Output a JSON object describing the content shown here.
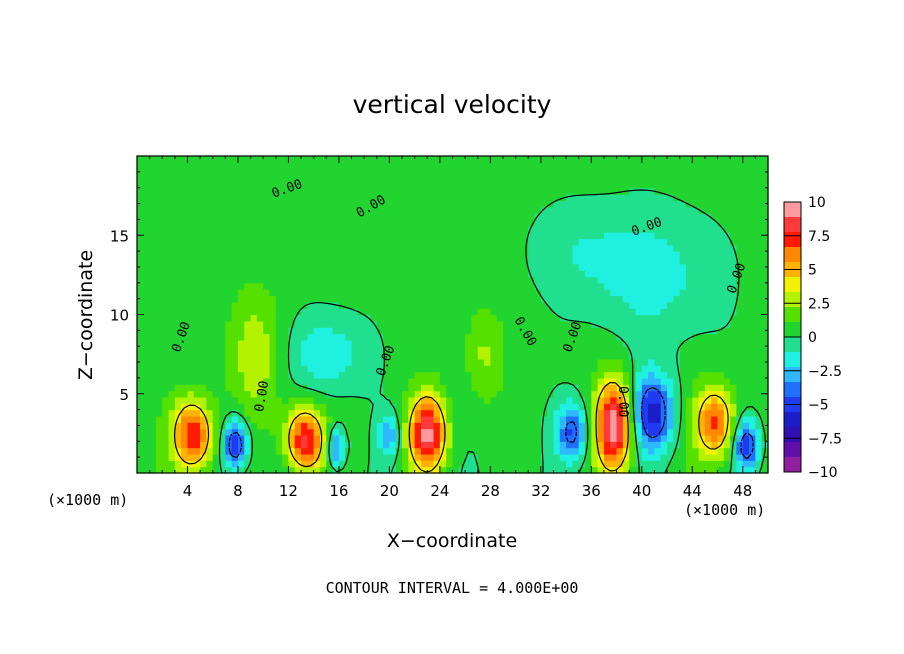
{
  "chart_data": {
    "type": "heatmap",
    "title": "vertical velocity",
    "xlabel": "X−coordinate",
    "ylabel": "Z−coordinate",
    "x_unit_left": "(×1000 m)",
    "x_unit_right": "(×1000 m)",
    "xlim": [
      0,
      50
    ],
    "ylim": [
      0,
      20
    ],
    "x_ticks": [
      "4",
      "8",
      "12",
      "16",
      "20",
      "24",
      "28",
      "32",
      "36",
      "40",
      "44",
      "48"
    ],
    "y_ticks": [
      "5",
      "10",
      "15"
    ],
    "footer": "CONTOUR INTERVAL = 4.000E+00",
    "contour_label": "0.00",
    "colorbar": {
      "levels": [
        "10",
        "7.5",
        "5",
        "2.5",
        "0",
        "−2.5",
        "−5",
        "−7.5",
        "−10"
      ],
      "colors": [
        "#ff9aa0",
        "#ff3a3a",
        "#ff1a00",
        "#ff8800",
        "#ffb300",
        "#f2f200",
        "#b3f200",
        "#55e000",
        "#22d430",
        "#20e090",
        "#20f0e0",
        "#30b8ff",
        "#2070ff",
        "#1f3af0",
        "#1c1cc8",
        "#3010b0",
        "#6010a8",
        "#9020a0"
      ]
    },
    "features": [
      {
        "x": 4.4,
        "z": 2.4,
        "rx": 1.6,
        "rz": 2.3,
        "w": 7.5
      },
      {
        "x": 7.8,
        "z": 1.8,
        "rx": 1.0,
        "rz": 1.6,
        "w": -6.5
      },
      {
        "x": 13.3,
        "z": 2.1,
        "rx": 1.5,
        "rz": 2.0,
        "w": 8.0
      },
      {
        "x": 15.8,
        "z": 1.6,
        "rx": 0.7,
        "rz": 1.3,
        "w": -4.5
      },
      {
        "x": 20.0,
        "z": 2.4,
        "rx": 0.8,
        "rz": 1.3,
        "w": -3.5
      },
      {
        "x": 23.0,
        "z": 2.5,
        "rx": 1.5,
        "rz": 2.4,
        "w": 8.5
      },
      {
        "x": 34.5,
        "z": 2.6,
        "rx": 1.3,
        "rz": 1.8,
        "w": -5.0
      },
      {
        "x": 37.8,
        "z": 3.0,
        "rx": 1.5,
        "rz": 2.8,
        "w": 9.5
      },
      {
        "x": 40.8,
        "z": 3.8,
        "rx": 1.7,
        "rz": 2.4,
        "w": -6.5
      },
      {
        "x": 45.8,
        "z": 3.2,
        "rx": 1.6,
        "rz": 2.3,
        "w": 6.5
      },
      {
        "x": 48.3,
        "z": 1.8,
        "rx": 1.0,
        "rz": 1.6,
        "w": -6.0
      },
      {
        "x": 9.5,
        "z": 7.5,
        "rx": 2.2,
        "rz": 4.0,
        "w": 2.5
      },
      {
        "x": 15.0,
        "z": 7.5,
        "rx": 3.0,
        "rz": 2.5,
        "w": -2.5
      },
      {
        "x": 27.5,
        "z": 7.5,
        "rx": 1.5,
        "rz": 3.0,
        "w": 2.0
      },
      {
        "x": 41.0,
        "z": 12.5,
        "rx": 5.0,
        "rz": 4.0,
        "w": -2.0
      },
      {
        "x": 35.0,
        "z": 14.0,
        "rx": 4.0,
        "rz": 3.0,
        "w": -1.2
      }
    ]
  }
}
